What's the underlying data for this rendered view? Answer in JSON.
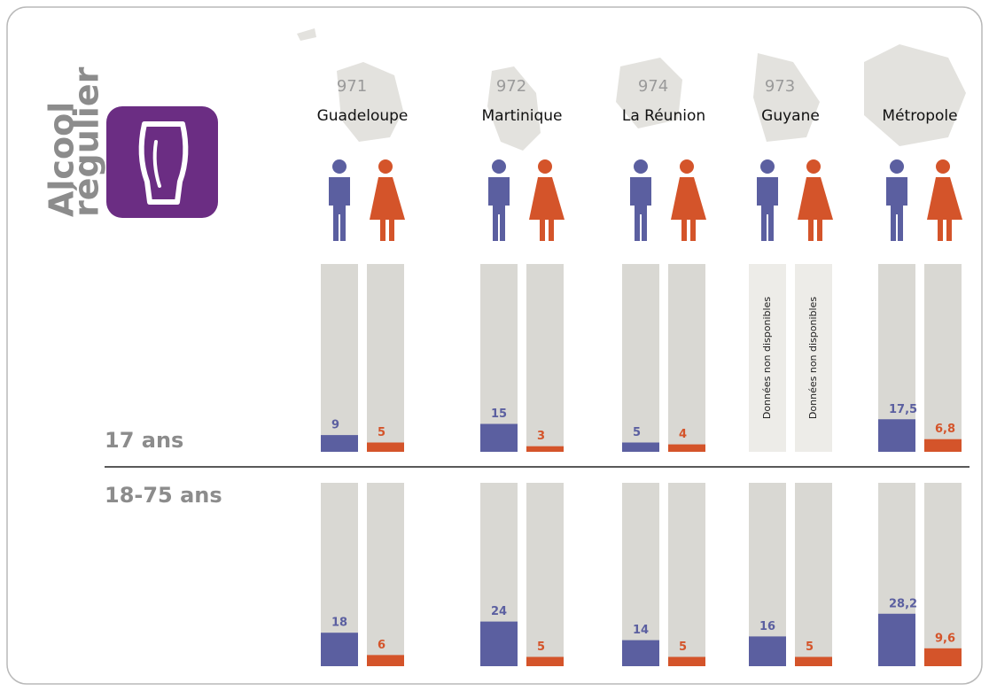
{
  "chart_data": {
    "type": "bar",
    "title": [
      "Alcool",
      "régulier"
    ],
    "codes": [
      "971",
      "972",
      "974",
      "973",
      null
    ],
    "categories": [
      "Guadeloupe",
      "Martinique",
      "La Réunion",
      "Guyane",
      "Métropole"
    ],
    "ylim": [
      0,
      100
    ],
    "missing_label": "Données non disponibles",
    "panels": [
      {
        "label": "17 ans",
        "series": [
          {
            "color": "#5b5fa0",
            "values": [
              9,
              15,
              5,
              null,
              17.5
            ],
            "value_labels": [
              "9",
              "15",
              "5",
              null,
              "17,5"
            ]
          },
          {
            "color": "#d4542a",
            "values": [
              5,
              3,
              4,
              null,
              6.8
            ],
            "value_labels": [
              "5",
              "3",
              "4",
              null,
              "6,8"
            ]
          }
        ]
      },
      {
        "label": "18-75 ans",
        "series": [
          {
            "color": "#5b5fa0",
            "values": [
              18,
              24,
              14,
              16,
              28.2
            ],
            "value_labels": [
              "18",
              "24",
              "14",
              "16",
              "28,2"
            ]
          },
          {
            "color": "#d4542a",
            "values": [
              6,
              5,
              5,
              5,
              9.6
            ],
            "value_labels": [
              "6",
              "5",
              "5",
              "5",
              "9,6"
            ]
          }
        ]
      }
    ]
  }
}
